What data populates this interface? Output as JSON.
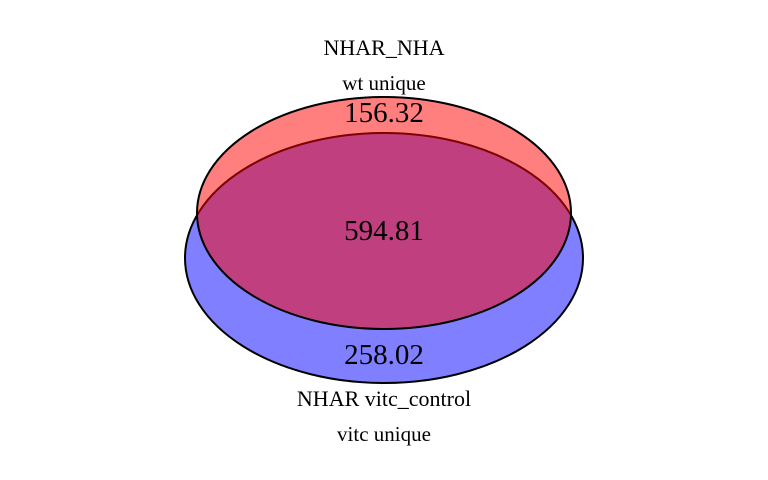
{
  "sets": [
    {
      "name": "NHAR_NHA",
      "subtitle": "wt unique",
      "unique_value": "156.32",
      "color": "#ff0000"
    },
    {
      "name": "NHAR vitc_control",
      "subtitle": "vitc unique",
      "unique_value": "258.02",
      "color": "#0000ff"
    }
  ],
  "intersection": {
    "value": "594.81",
    "color": "#c03a7c"
  },
  "background": "#ffffff"
}
